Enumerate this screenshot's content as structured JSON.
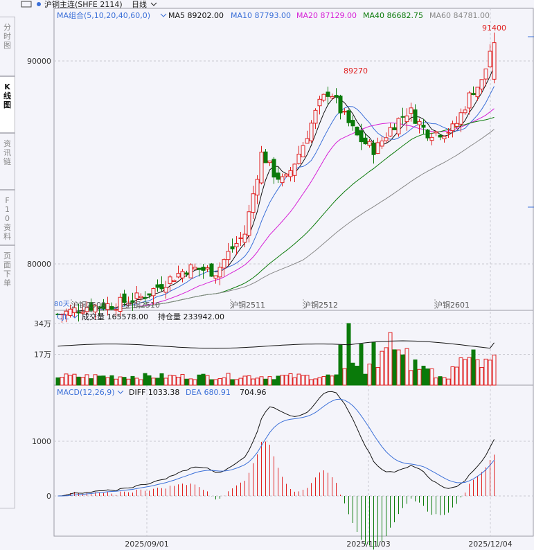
{
  "header": {
    "contract": "沪铜主连(SHFE 2114)",
    "period": "日线"
  },
  "side_tabs": [
    {
      "label": "分时图",
      "active": false
    },
    {
      "label": "K线图",
      "active": true
    },
    {
      "label": "资讯链",
      "active": false
    },
    {
      "label": "F10资料",
      "active": false
    },
    {
      "label": "页面下单",
      "active": false
    }
  ],
  "ma_legend": {
    "group": "MA组合(5,10,20,40,60,0)",
    "items": [
      {
        "label": "MA5 89202.00",
        "color": "#111111"
      },
      {
        "label": "MA10 87793.00",
        "color": "#3a6fd8"
      },
      {
        "label": "MA20 87129.00",
        "color": "#d61fd6"
      },
      {
        "label": "MA40 86682.75",
        "color": "#0a7a0a"
      },
      {
        "label": "MA60 84781.00",
        "color": "#888888"
      }
    ]
  },
  "vol_legend": {
    "name": "CJL",
    "volume": "成交量 165578.00",
    "oi": "持仓量 233942.00"
  },
  "macd_legend": {
    "name": "MACD(12,26,9)",
    "diff": "DIFF 1033.38",
    "dea": "DEA 680.91",
    "macd": "704.96"
  },
  "colors": {
    "up": "#e02020",
    "down": "#0a7a0a",
    "grid": "#c8c8d0",
    "text": "#333333"
  },
  "chart_data": {
    "type": "candlestick",
    "price_axis": {
      "ticks": [
        80000,
        90000
      ],
      "tick_labels": [
        "80000",
        "90000"
      ]
    },
    "volume_axis": {
      "ticks": [
        170000,
        340000
      ],
      "tick_labels": [
        "17万",
        "34万"
      ]
    },
    "macd_axis": {
      "ticks": [
        0,
        1000
      ],
      "tick_labels": [
        "0",
        "1000"
      ]
    },
    "contract_labels": [
      "沪铜2509",
      "沪铜2510",
      "沪铜2511",
      "沪铜2512",
      "沪铜2601"
    ],
    "date_labels": [
      "2025/09/01",
      "2025/11/03",
      "2025/12/04"
    ],
    "annotations": {
      "high_1": "89270",
      "high_2": "91400",
      "low_partial": "80天"
    },
    "latest": {
      "ma5": 89202.0,
      "ma10": 87793.0,
      "ma20": 87129.0,
      "ma40": 86682.75,
      "ma60": 84781.0,
      "volume": 165578,
      "open_interest": 233942,
      "diff": 1033.38,
      "dea": 680.91,
      "macd": 704.96
    }
  }
}
